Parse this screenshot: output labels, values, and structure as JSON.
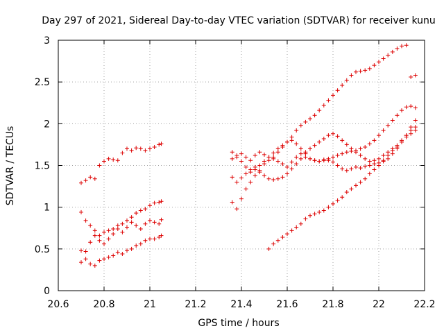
{
  "chart_data": {
    "type": "scatter",
    "title": "Day 297 of 2021, Sidereal Day-to-day VTEC variation (SDTVAR) for receiver kunu",
    "xlabel": "GPS time / hours",
    "ylabel": "SDTVAR / TECUs",
    "xlim": [
      20.6,
      22.2
    ],
    "ylim": [
      0,
      3
    ],
    "xticks": [
      20.6,
      20.8,
      21,
      21.2,
      21.4,
      21.6,
      21.8,
      22,
      22.2
    ],
    "xtick_labels": [
      "20.6",
      "20.8",
      "21",
      "21.2",
      "21.4",
      "21.6",
      "21.8",
      "22",
      "22.2"
    ],
    "yticks": [
      0,
      0.5,
      1,
      1.5,
      2,
      2.5,
      3
    ],
    "ytick_labels": [
      "0",
      "0.5",
      "1",
      "1.5",
      "2",
      "2.5",
      "3"
    ],
    "grid": true,
    "marker": "+",
    "color": "#dd0000",
    "series": [
      {
        "name": "s1",
        "x": [
          20.7,
          20.72,
          20.74,
          20.76,
          20.78,
          20.8,
          20.82,
          20.84,
          20.86,
          20.88,
          20.9,
          20.92,
          20.94,
          20.96,
          20.98,
          21.0,
          21.02,
          21.04,
          21.05
        ],
        "y": [
          1.29,
          1.32,
          1.36,
          1.34,
          1.5,
          1.55,
          1.58,
          1.57,
          1.56,
          1.65,
          1.7,
          1.68,
          1.71,
          1.7,
          1.68,
          1.7,
          1.72,
          1.75,
          1.76
        ]
      },
      {
        "name": "s2",
        "x": [
          20.7,
          20.72,
          20.74,
          20.76,
          20.78,
          20.8,
          20.82,
          20.84,
          20.86,
          20.88,
          20.9,
          20.92,
          20.94,
          20.96,
          20.98,
          21.0,
          21.02,
          21.04,
          21.05
        ],
        "y": [
          0.94,
          0.84,
          0.78,
          0.72,
          0.66,
          0.7,
          0.72,
          0.74,
          0.78,
          0.8,
          0.84,
          0.88,
          0.93,
          0.96,
          0.98,
          1.02,
          1.05,
          1.06,
          1.07
        ]
      },
      {
        "name": "s3",
        "x": [
          20.7,
          20.72,
          20.74,
          20.76,
          20.78,
          20.8,
          20.82,
          20.84,
          20.86,
          20.88,
          20.9,
          20.92,
          20.94,
          20.96,
          20.98,
          21.0,
          21.02,
          21.04,
          21.05
        ],
        "y": [
          0.48,
          0.47,
          0.58,
          0.66,
          0.6,
          0.56,
          0.62,
          0.68,
          0.74,
          0.7,
          0.76,
          0.82,
          0.78,
          0.74,
          0.8,
          0.84,
          0.82,
          0.8,
          0.85
        ]
      },
      {
        "name": "s4",
        "x": [
          20.7,
          20.72,
          20.74,
          20.76,
          20.78,
          20.8,
          20.82,
          20.84,
          20.86,
          20.88,
          20.9,
          20.92,
          20.94,
          20.96,
          20.98,
          21.0,
          21.02,
          21.04,
          21.05
        ],
        "y": [
          0.34,
          0.38,
          0.32,
          0.3,
          0.36,
          0.38,
          0.4,
          0.42,
          0.46,
          0.44,
          0.48,
          0.5,
          0.54,
          0.56,
          0.6,
          0.62,
          0.62,
          0.64,
          0.66
        ]
      },
      {
        "name": "s5",
        "x": [
          21.36,
          21.38,
          21.4,
          21.42,
          21.44,
          21.46,
          21.48,
          21.5,
          21.52,
          21.54,
          21.56,
          21.58,
          21.6,
          21.62,
          21.64,
          21.66,
          21.68,
          21.7,
          21.72,
          21.74,
          21.76,
          21.78,
          21.8,
          21.82,
          21.84,
          21.86,
          21.88,
          21.9,
          21.92,
          21.94,
          21.96,
          21.98,
          22.0,
          22.02,
          22.04,
          22.06,
          22.08,
          22.1,
          22.12,
          22.14,
          22.16
        ],
        "y": [
          1.06,
          0.98,
          1.1,
          1.22,
          1.3,
          1.38,
          1.44,
          1.52,
          1.56,
          1.6,
          1.66,
          1.72,
          1.78,
          1.84,
          1.92,
          1.98,
          2.02,
          2.06,
          2.1,
          2.16,
          2.22,
          2.28,
          2.34,
          2.4,
          2.46,
          2.52,
          2.58,
          2.62,
          2.63,
          2.64,
          2.66,
          2.7,
          2.74,
          2.78,
          2.82,
          2.86,
          2.9,
          2.93,
          2.94,
          2.56,
          2.58
        ]
      },
      {
        "name": "s6",
        "x": [
          21.36,
          21.38,
          21.4,
          21.42,
          21.44,
          21.46,
          21.48,
          21.5,
          21.52,
          21.54,
          21.56,
          21.58,
          21.6,
          21.62,
          21.64,
          21.66,
          21.68,
          21.7,
          21.72,
          21.74,
          21.76,
          21.78,
          21.8,
          21.82,
          21.84,
          21.86,
          21.88,
          21.9,
          21.92,
          21.94,
          21.96,
          21.98,
          22.0,
          22.02,
          22.04,
          22.06,
          22.08,
          22.1,
          22.12,
          22.14,
          22.16
        ],
        "y": [
          1.66,
          1.6,
          1.55,
          1.48,
          1.42,
          1.45,
          1.5,
          1.55,
          1.6,
          1.65,
          1.7,
          1.74,
          1.78,
          1.8,
          1.76,
          1.7,
          1.64,
          1.58,
          1.56,
          1.55,
          1.56,
          1.58,
          1.6,
          1.62,
          1.64,
          1.66,
          1.67,
          1.68,
          1.7,
          1.72,
          1.76,
          1.8,
          1.86,
          1.92,
          1.98,
          2.04,
          2.1,
          2.16,
          2.2,
          2.21,
          2.19
        ]
      },
      {
        "name": "s7",
        "x": [
          21.36,
          21.38,
          21.4,
          21.42,
          21.44,
          21.46,
          21.48,
          21.5,
          21.52,
          21.54,
          21.56,
          21.58,
          21.6,
          21.62,
          21.64,
          21.66,
          21.68,
          21.7,
          21.72,
          21.74,
          21.76,
          21.78,
          21.8,
          21.82,
          21.84,
          21.86,
          21.88,
          21.9,
          21.92,
          21.94,
          21.96,
          21.98,
          22.0,
          22.02,
          22.04,
          22.06,
          22.08,
          22.1,
          22.12,
          22.14,
          22.16
        ],
        "y": [
          1.36,
          1.3,
          1.35,
          1.4,
          1.45,
          1.48,
          1.42,
          1.38,
          1.34,
          1.33,
          1.34,
          1.36,
          1.4,
          1.46,
          1.52,
          1.58,
          1.6,
          1.58,
          1.56,
          1.55,
          1.57,
          1.56,
          1.54,
          1.5,
          1.46,
          1.44,
          1.46,
          1.48,
          1.47,
          1.49,
          1.5,
          1.52,
          1.53,
          1.55,
          1.58,
          1.64,
          1.7,
          1.78,
          1.86,
          1.96,
          2.04
        ]
      },
      {
        "name": "s8",
        "x": [
          21.36,
          21.38,
          21.4,
          21.42,
          21.44,
          21.46,
          21.48,
          21.5,
          21.52,
          21.54,
          21.56,
          21.58,
          21.6,
          21.62,
          21.64,
          21.66,
          21.68,
          21.7,
          21.72,
          21.74,
          21.76,
          21.78,
          21.8,
          21.82,
          21.84,
          21.86,
          21.88,
          21.9,
          21.92,
          21.94,
          21.96,
          21.98,
          22.0,
          22.02,
          22.04,
          22.06,
          22.08,
          22.1,
          22.12,
          22.14,
          22.16
        ],
        "y": [
          1.58,
          1.62,
          1.64,
          1.6,
          1.56,
          1.62,
          1.66,
          1.63,
          1.6,
          1.58,
          1.55,
          1.52,
          1.48,
          1.54,
          1.6,
          1.64,
          1.66,
          1.7,
          1.74,
          1.78,
          1.82,
          1.86,
          1.88,
          1.85,
          1.8,
          1.75,
          1.7,
          1.66,
          1.62,
          1.58,
          1.55,
          1.56,
          1.58,
          1.62,
          1.66,
          1.7,
          1.74,
          1.8,
          1.86,
          1.92,
          1.96
        ]
      },
      {
        "name": "s9",
        "x": [
          21.52,
          21.54,
          21.56,
          21.58,
          21.6,
          21.62,
          21.64,
          21.66,
          21.68,
          21.7,
          21.72,
          21.74,
          21.76,
          21.78,
          21.8,
          21.82,
          21.84,
          21.86,
          21.88,
          21.9,
          21.92,
          21.94,
          21.96,
          21.98,
          22.0,
          22.02,
          22.04,
          22.06,
          22.08,
          22.1,
          22.12,
          22.14,
          22.16
        ],
        "y": [
          0.5,
          0.56,
          0.6,
          0.64,
          0.68,
          0.72,
          0.76,
          0.8,
          0.86,
          0.9,
          0.92,
          0.94,
          0.96,
          1.0,
          1.04,
          1.08,
          1.12,
          1.18,
          1.22,
          1.26,
          1.3,
          1.34,
          1.4,
          1.45,
          1.5,
          1.56,
          1.62,
          1.68,
          1.72,
          1.78,
          1.84,
          1.88,
          1.92
        ]
      }
    ]
  }
}
